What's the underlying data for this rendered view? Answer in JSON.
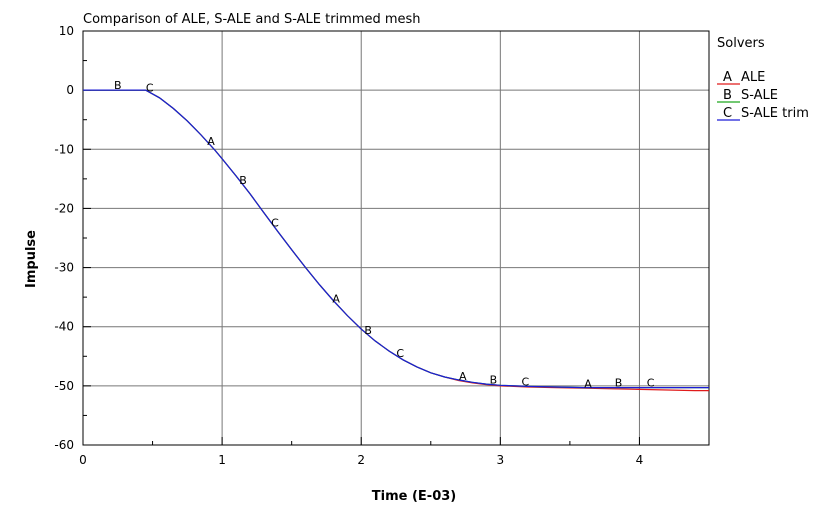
{
  "chart_data": {
    "type": "line",
    "title": "Comparison of ALE, S-ALE and S-ALE trimmed mesh",
    "xlabel": "Time (E-03)",
    "ylabel": "Impulse",
    "xlim": [
      0,
      4.5
    ],
    "ylim": [
      -60,
      10
    ],
    "x_ticks": [
      0,
      1,
      2,
      3,
      4
    ],
    "y_ticks": [
      10,
      0,
      -10,
      -20,
      -30,
      -40,
      -50,
      -60
    ],
    "x_tick_labels": [
      "0",
      "1",
      "2",
      "3",
      "4"
    ],
    "y_tick_labels": [
      "10",
      "0",
      "-10",
      "-20",
      "-30",
      "-40",
      "-50",
      "-60"
    ],
    "grid": true,
    "legend_title": "Solvers",
    "legend_position": "right",
    "series": [
      {
        "name": "ALE",
        "marker": "A",
        "color": "#e01b1b",
        "x": [
          0,
          0.45,
          0.55,
          0.65,
          0.75,
          0.85,
          0.95,
          1.0,
          1.1,
          1.2,
          1.3,
          1.4,
          1.5,
          1.6,
          1.7,
          1.8,
          1.9,
          2.0,
          2.1,
          2.2,
          2.3,
          2.4,
          2.5,
          2.6,
          2.7,
          2.8,
          2.9,
          3.0,
          3.2,
          3.4,
          3.6,
          3.8,
          4.0,
          4.2,
          4.4,
          4.5
        ],
        "y": [
          0,
          0,
          -1.3,
          -3.1,
          -5.2,
          -7.6,
          -10.2,
          -11.6,
          -14.5,
          -17.5,
          -20.7,
          -23.9,
          -27.0,
          -30.0,
          -32.9,
          -35.6,
          -38.1,
          -40.4,
          -42.4,
          -44.1,
          -45.6,
          -46.8,
          -47.8,
          -48.5,
          -49.1,
          -49.5,
          -49.8,
          -50.0,
          -50.2,
          -50.3,
          -50.4,
          -50.5,
          -50.6,
          -50.7,
          -50.8,
          -50.8
        ],
        "marker_x": [
          0.92,
          1.82,
          2.73,
          3.63
        ]
      },
      {
        "name": "S-ALE",
        "marker": "B",
        "color": "#1ea81e",
        "x": [
          0,
          0.45,
          0.55,
          0.65,
          0.75,
          0.85,
          0.95,
          1.0,
          1.1,
          1.2,
          1.3,
          1.4,
          1.5,
          1.6,
          1.7,
          1.8,
          1.9,
          2.0,
          2.1,
          2.2,
          2.3,
          2.4,
          2.5,
          2.6,
          2.7,
          2.8,
          2.9,
          3.0,
          3.2,
          3.4,
          3.6,
          3.8,
          4.0,
          4.2,
          4.4,
          4.5
        ],
        "y": [
          0,
          0,
          -1.3,
          -3.1,
          -5.2,
          -7.6,
          -10.2,
          -11.6,
          -14.5,
          -17.5,
          -20.7,
          -23.9,
          -27.0,
          -30.0,
          -32.9,
          -35.6,
          -38.1,
          -40.4,
          -42.4,
          -44.1,
          -45.6,
          -46.8,
          -47.8,
          -48.5,
          -49.0,
          -49.4,
          -49.7,
          -49.9,
          -50.1,
          -50.2,
          -50.3,
          -50.3,
          -50.3,
          -50.3,
          -50.3,
          -50.3
        ],
        "marker_x": [
          0.25,
          1.15,
          2.05,
          2.95,
          3.85
        ]
      },
      {
        "name": "S-ALE trim",
        "marker": "C",
        "color": "#1c1cd6",
        "x": [
          0,
          0.45,
          0.55,
          0.65,
          0.75,
          0.85,
          0.95,
          1.0,
          1.1,
          1.2,
          1.3,
          1.4,
          1.5,
          1.6,
          1.7,
          1.8,
          1.9,
          2.0,
          2.1,
          2.2,
          2.3,
          2.4,
          2.5,
          2.6,
          2.7,
          2.8,
          2.9,
          3.0,
          3.2,
          3.4,
          3.6,
          3.8,
          4.0,
          4.2,
          4.4,
          4.5
        ],
        "y": [
          0,
          0,
          -1.3,
          -3.1,
          -5.2,
          -7.6,
          -10.2,
          -11.6,
          -14.5,
          -17.5,
          -20.7,
          -23.9,
          -27.0,
          -30.0,
          -32.9,
          -35.6,
          -38.1,
          -40.4,
          -42.4,
          -44.1,
          -45.6,
          -46.8,
          -47.8,
          -48.5,
          -49.0,
          -49.4,
          -49.7,
          -49.9,
          -50.1,
          -50.2,
          -50.3,
          -50.3,
          -50.3,
          -50.3,
          -50.3,
          -50.3
        ],
        "marker_x": [
          0.48,
          1.38,
          2.28,
          3.18,
          4.08
        ]
      }
    ]
  }
}
